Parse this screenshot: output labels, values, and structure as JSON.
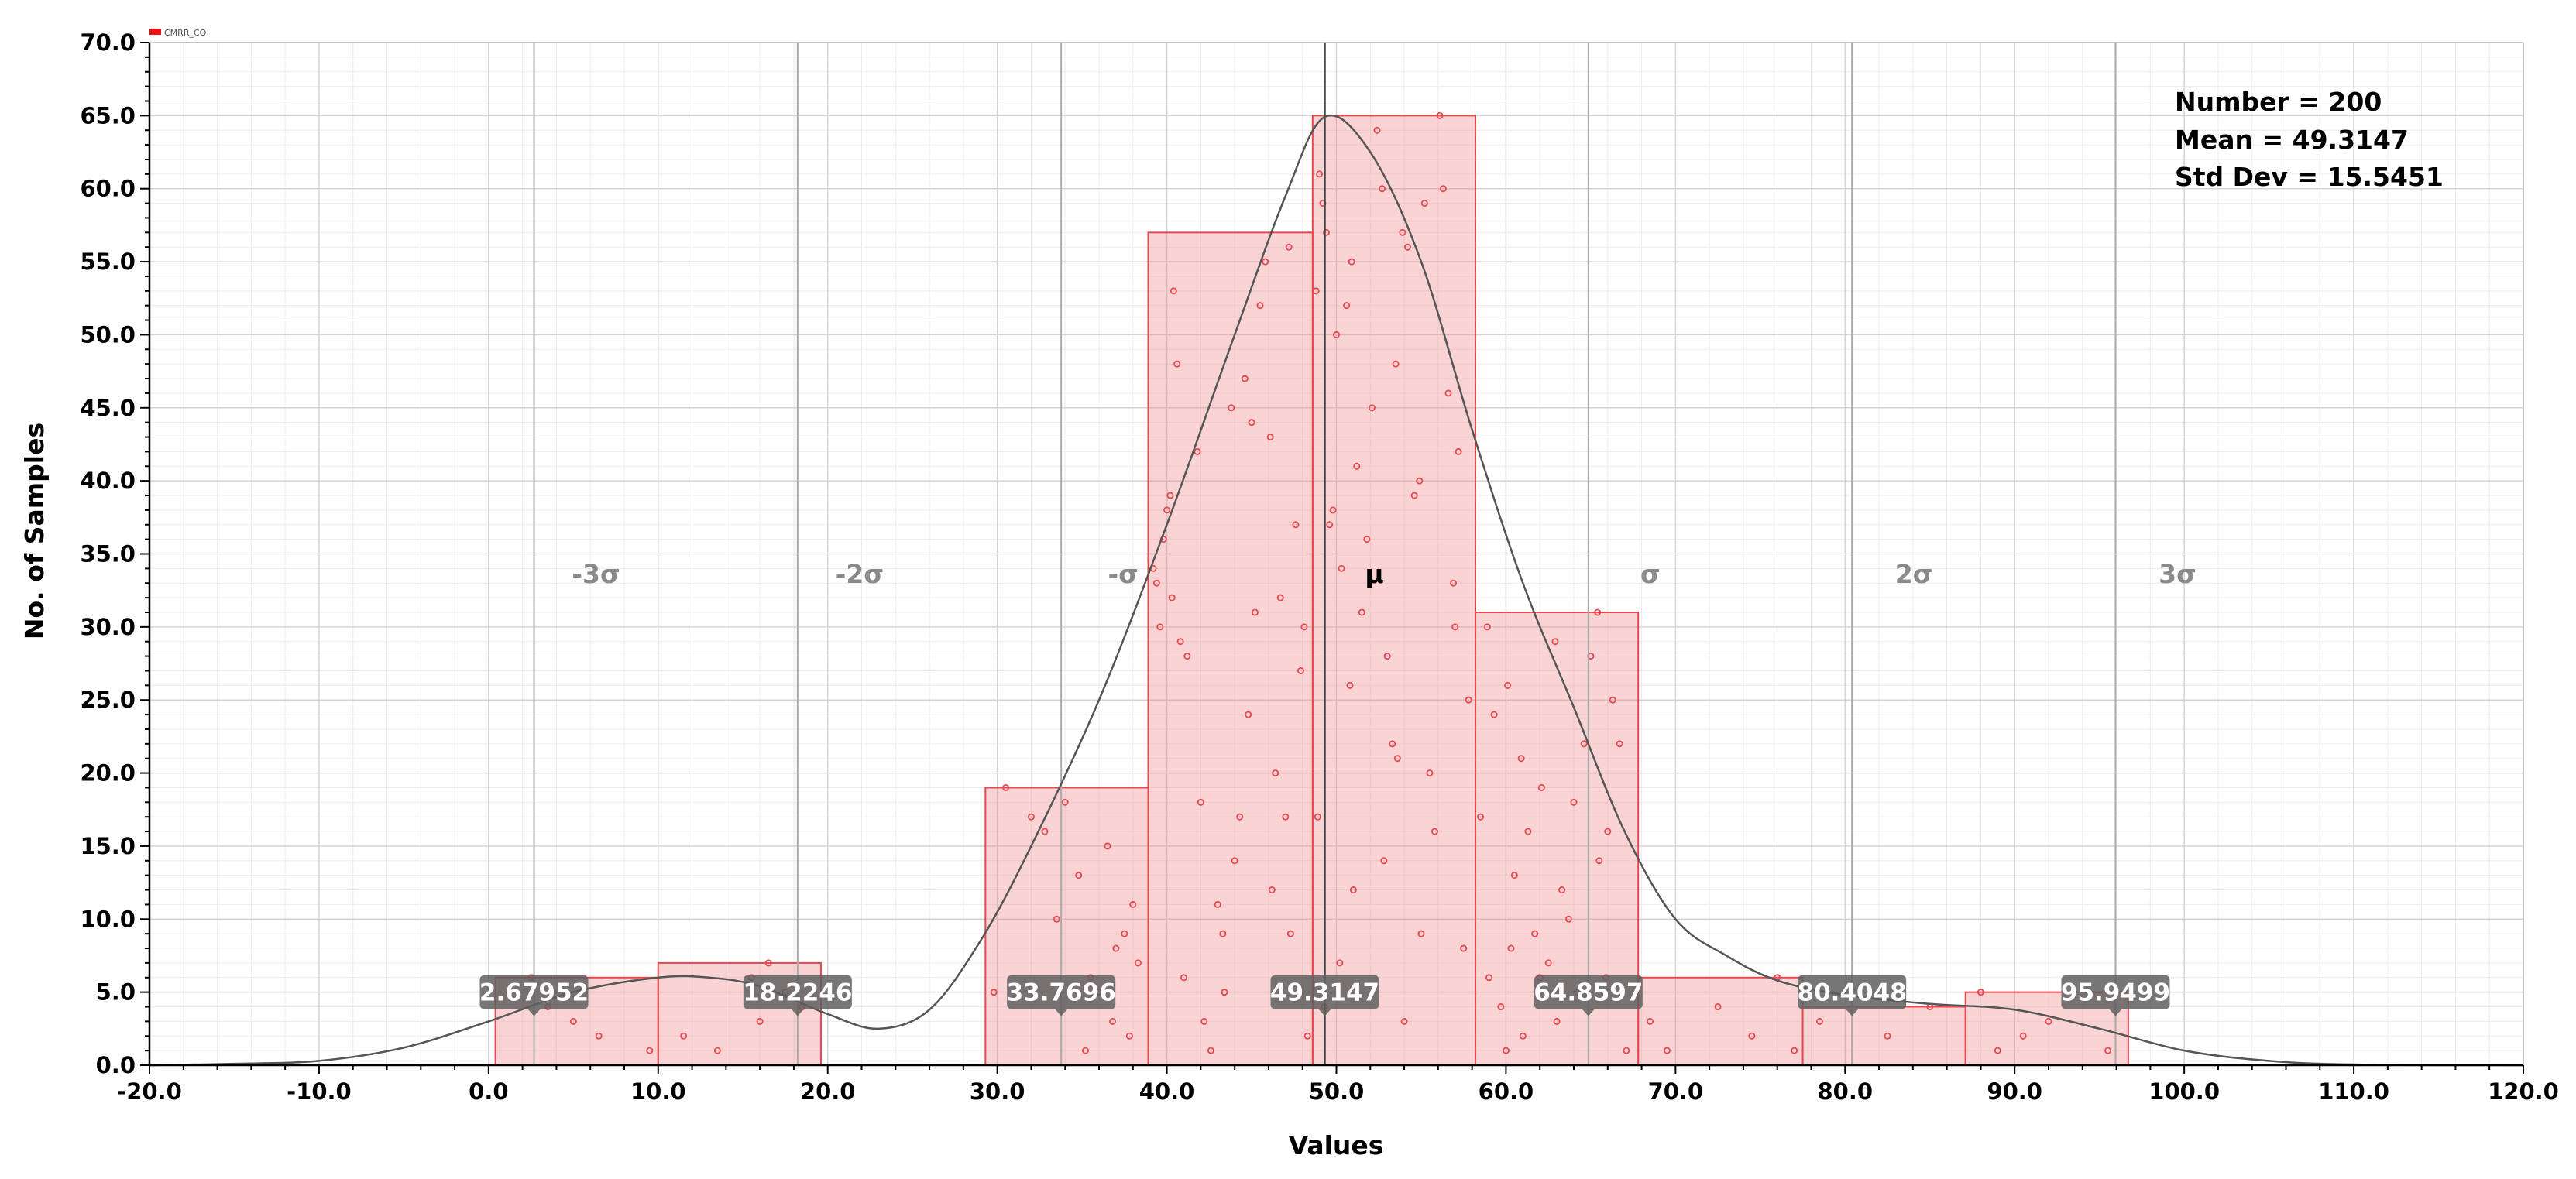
{
  "chart_data": {
    "type": "histogram",
    "legend": {
      "entries": [
        "CMRR_CO"
      ],
      "color": "#ee1111"
    },
    "xlabel": "Values",
    "ylabel": "No. of Samples",
    "xlim": [
      -20,
      120
    ],
    "ylim": [
      0,
      70
    ],
    "x_ticks": [
      "-20.0",
      "-10.0",
      "0.0",
      "10.0",
      "20.0",
      "30.0",
      "40.0",
      "50.0",
      "60.0",
      "70.0",
      "80.0",
      "90.0",
      "100.0",
      "110.0",
      "120.0"
    ],
    "y_ticks": [
      "0.0",
      "5.0",
      "10.0",
      "15.0",
      "20.0",
      "25.0",
      "30.0",
      "35.0",
      "40.0",
      "45.0",
      "50.0",
      "55.0",
      "60.0",
      "65.0",
      "70.0"
    ],
    "bins": [
      {
        "x0": 0.4,
        "x1": 10.0,
        "count": 6
      },
      {
        "x0": 10.0,
        "x1": 19.6,
        "count": 7
      },
      {
        "x0": 29.3,
        "x1": 38.9,
        "count": 19
      },
      {
        "x0": 38.9,
        "x1": 48.6,
        "count": 57
      },
      {
        "x0": 48.6,
        "x1": 58.2,
        "count": 65
      },
      {
        "x0": 58.2,
        "x1": 67.8,
        "count": 31
      },
      {
        "x0": 67.8,
        "x1": 77.5,
        "count": 6
      },
      {
        "x0": 77.5,
        "x1": 87.1,
        "count": 4
      },
      {
        "x0": 87.1,
        "x1": 96.7,
        "count": 5
      }
    ],
    "stats": {
      "number_text": "Number = 200",
      "mean_text": "Mean = 49.3147",
      "stddev_text": "Std Dev = 15.5451"
    },
    "sigma_lines": [
      {
        "label": "-3σ",
        "x": 2.67952,
        "value_text": "2.67952"
      },
      {
        "label": "-2σ",
        "x": 18.2246,
        "value_text": "18.2246"
      },
      {
        "label": "-σ",
        "x": 33.7696,
        "value_text": "33.7696"
      },
      {
        "label": "μ",
        "x": 49.3147,
        "value_text": "49.3147"
      },
      {
        "label": "σ",
        "x": 64.8597,
        "value_text": "64.8597"
      },
      {
        "label": "2σ",
        "x": 80.4048,
        "value_text": "80.4048"
      },
      {
        "label": "3σ",
        "x": 95.9499,
        "value_text": "95.9499"
      }
    ],
    "fit_curve": {
      "points": [
        [
          -20,
          0.0
        ],
        [
          -15,
          0.1
        ],
        [
          -10,
          0.3
        ],
        [
          -5,
          1.2
        ],
        [
          0,
          3.0
        ],
        [
          5,
          5.0
        ],
        [
          10,
          6.0
        ],
        [
          13,
          6.0
        ],
        [
          16,
          5.4
        ],
        [
          20,
          3.5
        ],
        [
          23,
          2.5
        ],
        [
          26,
          3.8
        ],
        [
          29,
          8.5
        ],
        [
          32,
          15.0
        ],
        [
          36,
          25.0
        ],
        [
          40,
          37.0
        ],
        [
          44,
          50.0
        ],
        [
          47,
          59.5
        ],
        [
          49.3,
          64.9
        ],
        [
          52,
          62.5
        ],
        [
          55,
          55.0
        ],
        [
          58,
          43.5
        ],
        [
          61,
          33.0
        ],
        [
          64,
          24.5
        ],
        [
          67,
          16.0
        ],
        [
          70,
          10.0
        ],
        [
          73,
          7.5
        ],
        [
          76,
          5.8
        ],
        [
          80,
          4.8
        ],
        [
          85,
          4.2
        ],
        [
          90,
          3.8
        ],
        [
          95,
          2.5
        ],
        [
          100,
          1.0
        ],
        [
          105,
          0.3
        ],
        [
          110,
          0.05
        ],
        [
          120,
          0.0
        ]
      ]
    },
    "scatter_points": [
      [
        2.5,
        6
      ],
      [
        3.5,
        4
      ],
      [
        4.5,
        5
      ],
      [
        5.0,
        3
      ],
      [
        6.5,
        2
      ],
      [
        9.5,
        1
      ],
      [
        11.5,
        2
      ],
      [
        13.5,
        1
      ],
      [
        15.5,
        6
      ],
      [
        16.0,
        3
      ],
      [
        16.5,
        7
      ],
      [
        17.5,
        5
      ],
      [
        18.5,
        4
      ],
      [
        29.8,
        5
      ],
      [
        30.5,
        19
      ],
      [
        32.0,
        17
      ],
      [
        32.8,
        16
      ],
      [
        33.5,
        10
      ],
      [
        34.0,
        18
      ],
      [
        34.8,
        13
      ],
      [
        35.5,
        6
      ],
      [
        36.0,
        5
      ],
      [
        36.5,
        15
      ],
      [
        37.0,
        8
      ],
      [
        37.5,
        9
      ],
      [
        38.0,
        11
      ],
      [
        38.3,
        7
      ],
      [
        36.8,
        3
      ],
      [
        35.2,
        1
      ],
      [
        37.8,
        2
      ],
      [
        39.2,
        34
      ],
      [
        39.4,
        33
      ],
      [
        39.6,
        30
      ],
      [
        39.8,
        36
      ],
      [
        40.0,
        38
      ],
      [
        40.2,
        39
      ],
      [
        40.4,
        53
      ],
      [
        40.6,
        48
      ],
      [
        40.8,
        29
      ],
      [
        41.2,
        28
      ],
      [
        41.8,
        42
      ],
      [
        42.2,
        3
      ],
      [
        42.6,
        1
      ],
      [
        43.0,
        11
      ],
      [
        43.4,
        5
      ],
      [
        43.8,
        45
      ],
      [
        44.0,
        14
      ],
      [
        44.3,
        17
      ],
      [
        44.6,
        47
      ],
      [
        44.8,
        24
      ],
      [
        45.0,
        44
      ],
      [
        45.2,
        31
      ],
      [
        45.5,
        52
      ],
      [
        45.8,
        55
      ],
      [
        46.1,
        43
      ],
      [
        46.4,
        20
      ],
      [
        46.7,
        32
      ],
      [
        47.0,
        17
      ],
      [
        47.2,
        56
      ],
      [
        47.6,
        37
      ],
      [
        47.9,
        27
      ],
      [
        48.1,
        30
      ],
      [
        48.3,
        2
      ],
      [
        41.0,
        6
      ],
      [
        46.2,
        12
      ],
      [
        47.3,
        9
      ],
      [
        40.3,
        32
      ],
      [
        42.0,
        18
      ],
      [
        43.3,
        9
      ],
      [
        48.8,
        53
      ],
      [
        49.0,
        61
      ],
      [
        49.2,
        59
      ],
      [
        49.4,
        57
      ],
      [
        49.6,
        37
      ],
      [
        49.8,
        38
      ],
      [
        50.0,
        50
      ],
      [
        50.3,
        34
      ],
      [
        50.6,
        52
      ],
      [
        50.9,
        55
      ],
      [
        51.2,
        41
      ],
      [
        51.5,
        31
      ],
      [
        51.8,
        36
      ],
      [
        52.1,
        45
      ],
      [
        52.4,
        64
      ],
      [
        52.7,
        60
      ],
      [
        53.0,
        28
      ],
      [
        53.3,
        22
      ],
      [
        53.6,
        21
      ],
      [
        53.9,
        57
      ],
      [
        54.2,
        56
      ],
      [
        54.6,
        39
      ],
      [
        54.9,
        40
      ],
      [
        55.2,
        59
      ],
      [
        55.5,
        20
      ],
      [
        55.8,
        16
      ],
      [
        56.1,
        65
      ],
      [
        56.3,
        60
      ],
      [
        56.6,
        46
      ],
      [
        56.9,
        33
      ],
      [
        57.2,
        42
      ],
      [
        57.5,
        8
      ],
      [
        57.8,
        25
      ],
      [
        49.3,
        4
      ],
      [
        50.2,
        7
      ],
      [
        51.0,
        12
      ],
      [
        52.8,
        14
      ],
      [
        54.0,
        3
      ],
      [
        55.0,
        9
      ],
      [
        57.0,
        30
      ],
      [
        48.9,
        17
      ],
      [
        50.8,
        26
      ],
      [
        53.5,
        48
      ],
      [
        58.5,
        17
      ],
      [
        58.9,
        30
      ],
      [
        59.3,
        24
      ],
      [
        59.7,
        4
      ],
      [
        60.1,
        26
      ],
      [
        60.5,
        13
      ],
      [
        60.9,
        21
      ],
      [
        61.3,
        16
      ],
      [
        61.7,
        9
      ],
      [
        62.1,
        19
      ],
      [
        62.5,
        7
      ],
      [
        62.9,
        29
      ],
      [
        63.3,
        12
      ],
      [
        63.7,
        10
      ],
      [
        64.2,
        5
      ],
      [
        64.6,
        22
      ],
      [
        65.0,
        28
      ],
      [
        65.4,
        31
      ],
      [
        65.9,
        6
      ],
      [
        66.3,
        25
      ],
      [
        66.7,
        22
      ],
      [
        67.1,
        1
      ],
      [
        63.0,
        3
      ],
      [
        61.0,
        2
      ],
      [
        60.0,
        1
      ],
      [
        59.0,
        6
      ],
      [
        65.5,
        14
      ],
      [
        62.0,
        6
      ],
      [
        64.0,
        18
      ],
      [
        66.0,
        16
      ],
      [
        60.3,
        8
      ],
      [
        68.5,
        3
      ],
      [
        69.5,
        1
      ],
      [
        72.5,
        4
      ],
      [
        74.5,
        2
      ],
      [
        76.0,
        6
      ],
      [
        77.0,
        1
      ],
      [
        78.5,
        3
      ],
      [
        80.5,
        5
      ],
      [
        82.5,
        2
      ],
      [
        85.0,
        4
      ],
      [
        88.0,
        5
      ],
      [
        89.0,
        1
      ],
      [
        90.5,
        2
      ],
      [
        92.0,
        3
      ],
      [
        95.5,
        1
      ]
    ]
  }
}
